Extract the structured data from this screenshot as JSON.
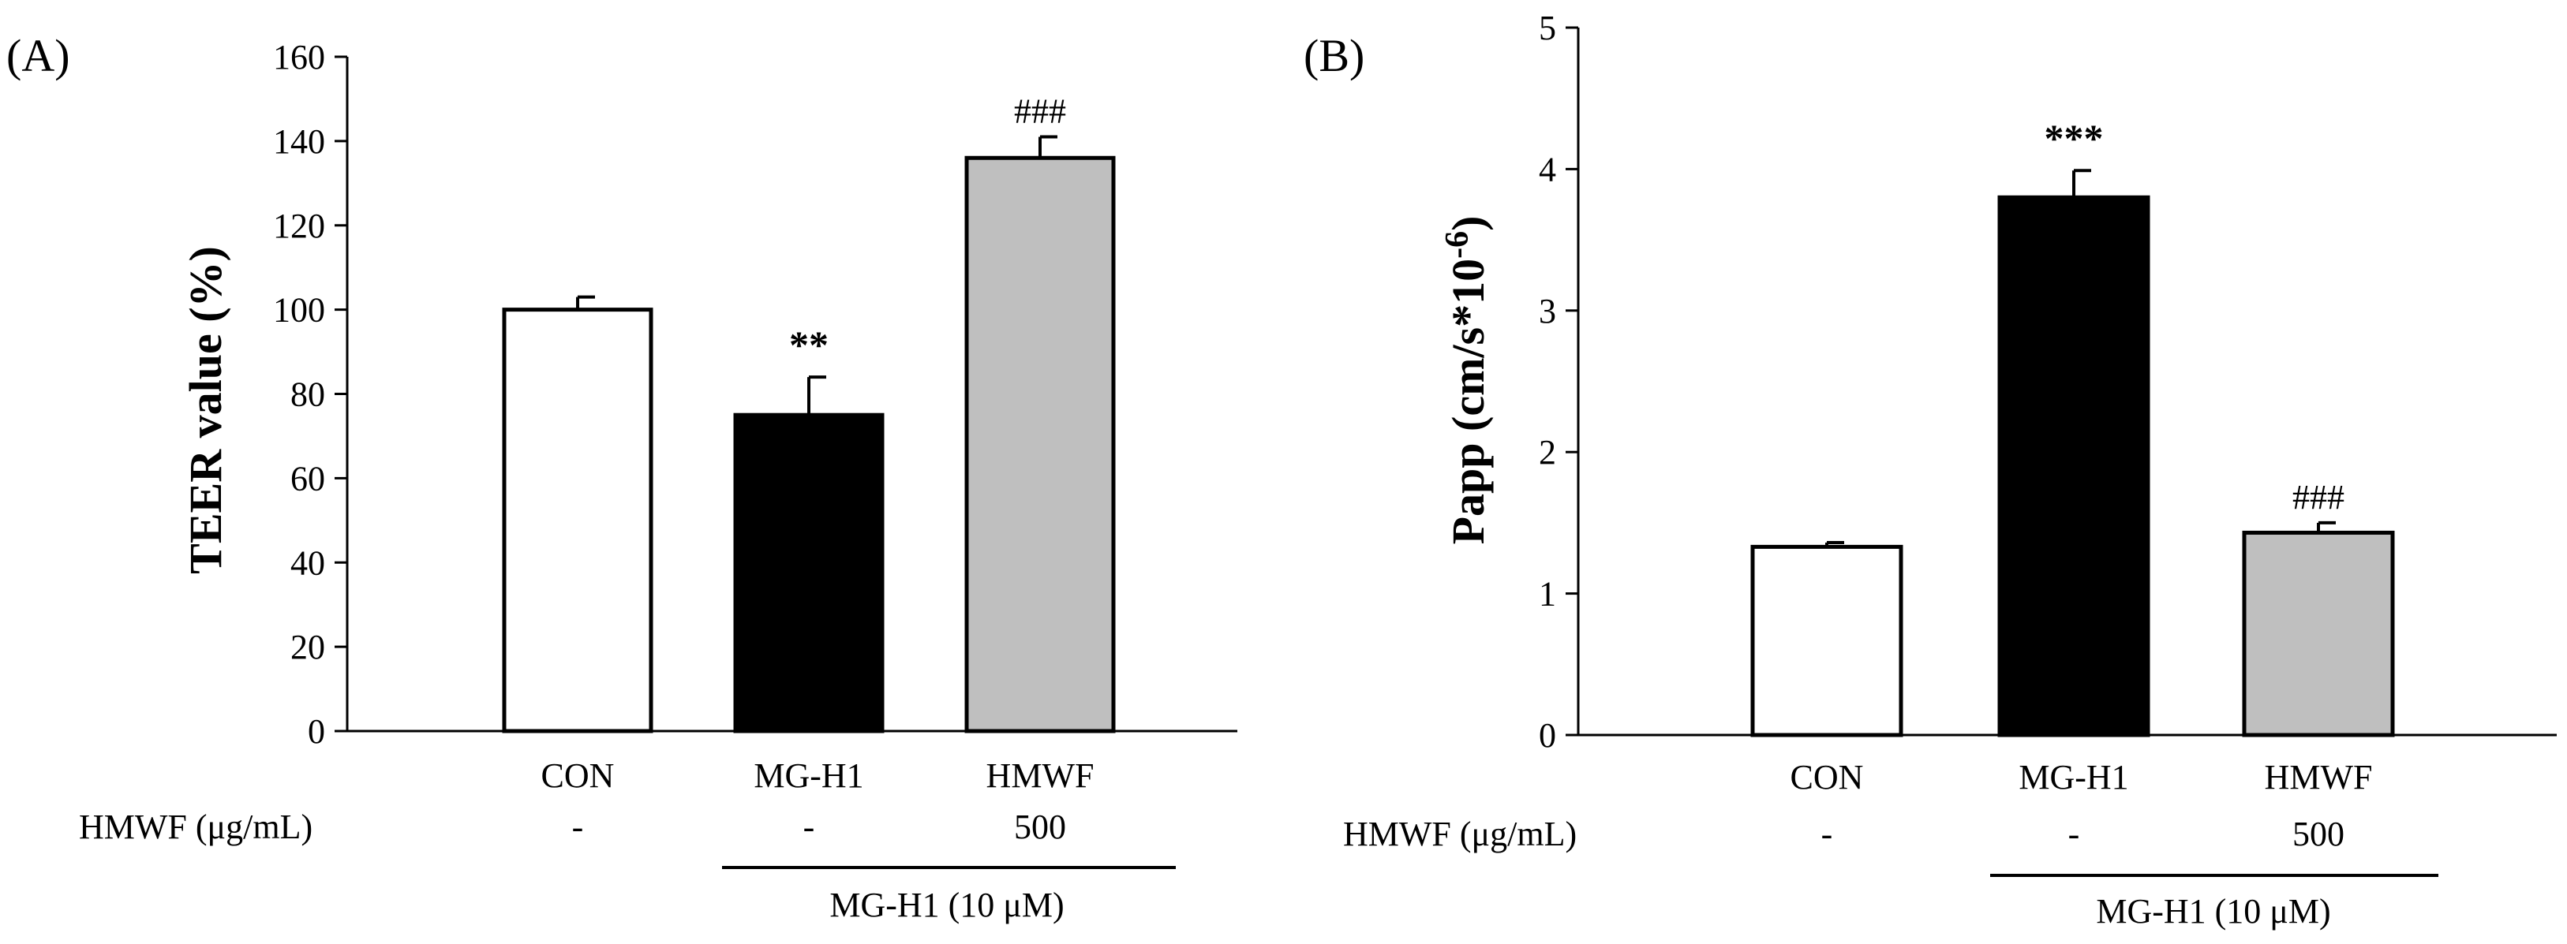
{
  "chart_data": [
    {
      "type": "bar",
      "panel_label": "(A)",
      "ylabel": "TEER value (%)",
      "ylim": [
        0,
        160
      ],
      "yticks": [
        "0",
        "20",
        "40",
        "60",
        "80",
        "100",
        "120",
        "140",
        "160"
      ],
      "categories": [
        "CON",
        "MG-H1",
        "HMWF"
      ],
      "values": [
        100,
        75,
        136
      ],
      "errors": [
        3,
        9,
        5
      ],
      "fills": [
        "#ffffff",
        "#000000",
        "#bfbfbf"
      ],
      "annotations": [
        "",
        "**",
        "###"
      ],
      "row_label": "HMWF (μg/mL)",
      "row_values": [
        "-",
        "-",
        "500"
      ],
      "group_label": "MG-H1 (10 μM)"
    },
    {
      "type": "bar",
      "panel_label": "(B)",
      "ylabel": "Papp (cm/s*10",
      "ylabel_sup": "-6",
      "ylabel_close": ")",
      "ylim": [
        0,
        5
      ],
      "yticks": [
        "0",
        "1",
        "2",
        "3",
        "4",
        "5"
      ],
      "categories": [
        "CON",
        "MG-H1",
        "HMWF"
      ],
      "values": [
        1.33,
        3.8,
        1.43
      ],
      "errors": [
        0.03,
        0.19,
        0.07
      ],
      "fills": [
        "#ffffff",
        "#000000",
        "#bfbfbf"
      ],
      "annotations": [
        "",
        "***",
        "###"
      ],
      "row_label": "HMWF (μg/mL)",
      "row_values": [
        "-",
        "-",
        "500"
      ],
      "group_label": "MG-H1 (10 μM)"
    }
  ]
}
